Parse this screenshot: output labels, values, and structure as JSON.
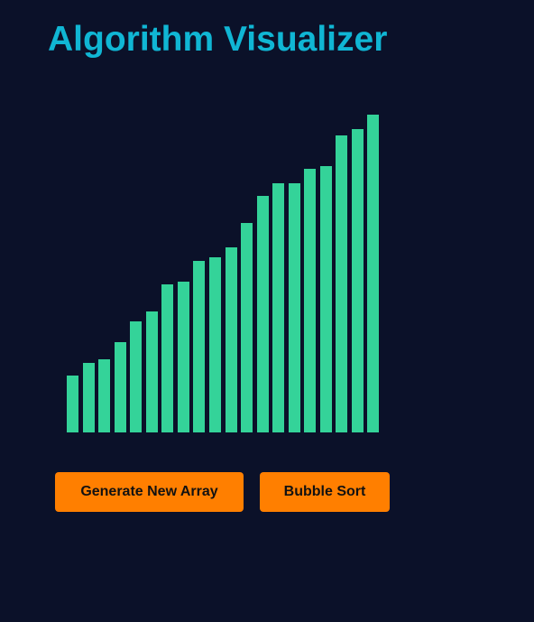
{
  "app": {
    "title": "Algorithm Visualizer"
  },
  "chart_data": {
    "type": "bar",
    "values": [
      63,
      77,
      81,
      100,
      123,
      134,
      164,
      167,
      190,
      194,
      205,
      232,
      262,
      276,
      276,
      292,
      295,
      329,
      336,
      352
    ],
    "max_value": 352,
    "bar_color": "#34d399"
  },
  "controls": {
    "generate_label": "Generate New Array",
    "sort_label": "Bubble Sort"
  },
  "colors": {
    "background": "#0b1129",
    "title": "#10b6d4",
    "button": "#ff7f00"
  }
}
